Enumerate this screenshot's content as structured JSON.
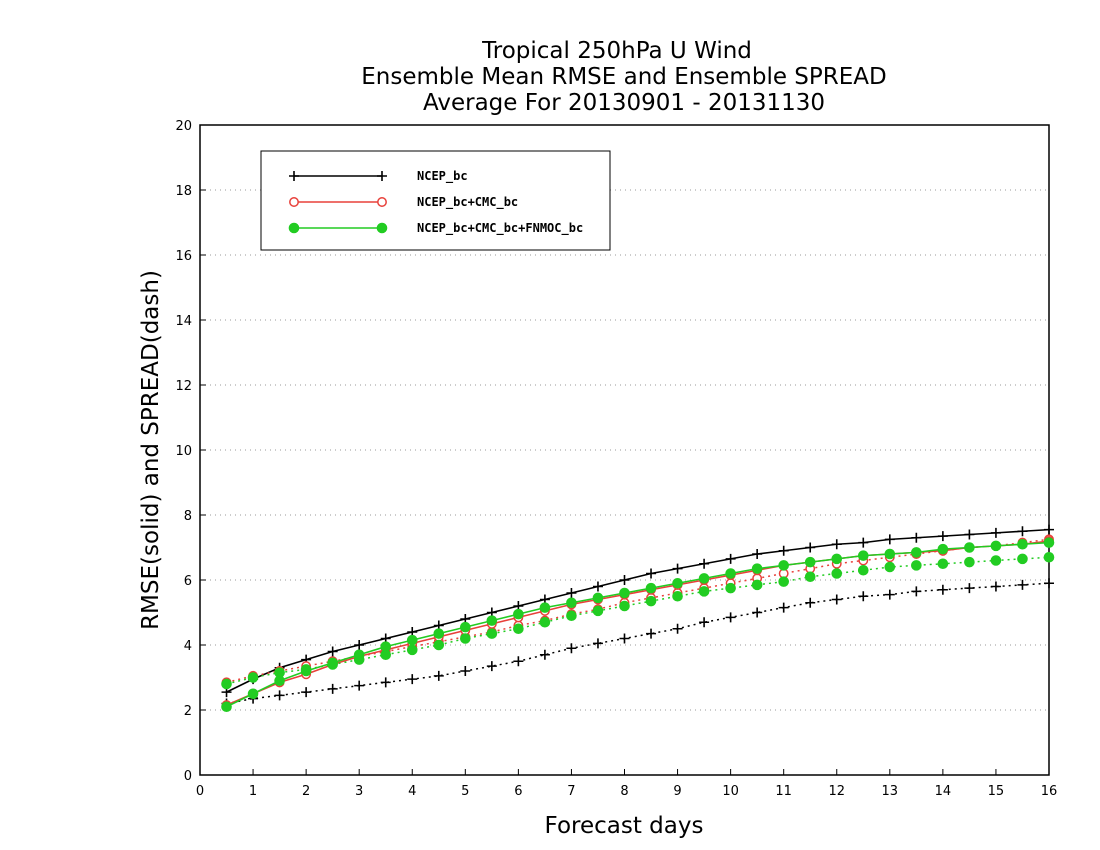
{
  "chart_data": {
    "type": "line",
    "title_lines": [
      "Tropical 250hPa U Wind",
      "Ensemble Mean RMSE and Ensemble SPREAD",
      "Average For 20130901 - 20131130"
    ],
    "xlabel": "Forecast days",
    "ylabel": "RMSE(solid) and SPREAD(dash)",
    "xlim": [
      0,
      16
    ],
    "ylim": [
      0,
      20
    ],
    "xticks": [
      0,
      1,
      2,
      3,
      4,
      5,
      6,
      7,
      8,
      9,
      10,
      11,
      12,
      13,
      14,
      15,
      16
    ],
    "yticks": [
      0,
      2,
      4,
      6,
      8,
      10,
      12,
      14,
      16,
      18,
      20
    ],
    "grid": "horizontal dotted",
    "legend_position": "top-left",
    "x": [
      0.5,
      1,
      1.5,
      2,
      2.5,
      3,
      3.5,
      4,
      4.5,
      5,
      5.5,
      6,
      6.5,
      7,
      7.5,
      8,
      8.5,
      9,
      9.5,
      10,
      10.5,
      11,
      11.5,
      12,
      12.5,
      13,
      13.5,
      14,
      14.5,
      15,
      15.5,
      16
    ],
    "series": [
      {
        "name": "NCEP_bc",
        "color": "#000000",
        "marker": "plus",
        "rmse": [
          2.55,
          2.95,
          3.3,
          3.55,
          3.8,
          4.0,
          4.2,
          4.4,
          4.6,
          4.8,
          5.0,
          5.2,
          5.4,
          5.6,
          5.8,
          6.0,
          6.2,
          6.35,
          6.5,
          6.65,
          6.8,
          6.9,
          7.0,
          7.1,
          7.15,
          7.25,
          7.3,
          7.35,
          7.4,
          7.45,
          7.5,
          7.55
        ],
        "spread": [
          2.2,
          2.35,
          2.45,
          2.55,
          2.65,
          2.75,
          2.85,
          2.95,
          3.05,
          3.2,
          3.35,
          3.5,
          3.7,
          3.9,
          4.05,
          4.2,
          4.35,
          4.5,
          4.7,
          4.85,
          5.0,
          5.15,
          5.3,
          5.4,
          5.5,
          5.55,
          5.65,
          5.7,
          5.75,
          5.8,
          5.85,
          5.9
        ]
      },
      {
        "name": "NCEP_bc+CMC_bc",
        "color": "#e8403a",
        "marker": "open-circle",
        "rmse": [
          2.15,
          2.5,
          2.85,
          3.1,
          3.4,
          3.65,
          3.85,
          4.05,
          4.25,
          4.45,
          4.65,
          4.85,
          5.05,
          5.25,
          5.4,
          5.55,
          5.7,
          5.85,
          6.0,
          6.15,
          6.3,
          6.45,
          6.55,
          6.65,
          6.75,
          6.8,
          6.85,
          6.9,
          7.0,
          7.05,
          7.1,
          7.2
        ],
        "spread": [
          2.85,
          3.05,
          3.2,
          3.35,
          3.5,
          3.65,
          3.8,
          3.95,
          4.1,
          4.25,
          4.4,
          4.6,
          4.75,
          4.95,
          5.1,
          5.3,
          5.45,
          5.6,
          5.75,
          5.9,
          6.05,
          6.2,
          6.35,
          6.5,
          6.6,
          6.7,
          6.8,
          6.9,
          7.0,
          7.05,
          7.15,
          7.25
        ]
      },
      {
        "name": "NCEP_bc+CMC_bc+FNMOC_bc",
        "color": "#22cc22",
        "marker": "filled-circle",
        "rmse": [
          2.1,
          2.5,
          2.9,
          3.2,
          3.45,
          3.7,
          3.95,
          4.15,
          4.35,
          4.55,
          4.75,
          4.95,
          5.15,
          5.3,
          5.45,
          5.6,
          5.75,
          5.9,
          6.05,
          6.2,
          6.35,
          6.45,
          6.55,
          6.65,
          6.75,
          6.8,
          6.85,
          6.95,
          7.0,
          7.05,
          7.1,
          7.15
        ],
        "spread": [
          2.8,
          3.0,
          3.15,
          3.25,
          3.4,
          3.55,
          3.7,
          3.85,
          4.0,
          4.2,
          4.35,
          4.5,
          4.7,
          4.9,
          5.05,
          5.2,
          5.35,
          5.5,
          5.65,
          5.75,
          5.85,
          5.95,
          6.1,
          6.2,
          6.3,
          6.4,
          6.45,
          6.5,
          6.55,
          6.6,
          6.65,
          6.7
        ]
      }
    ]
  }
}
